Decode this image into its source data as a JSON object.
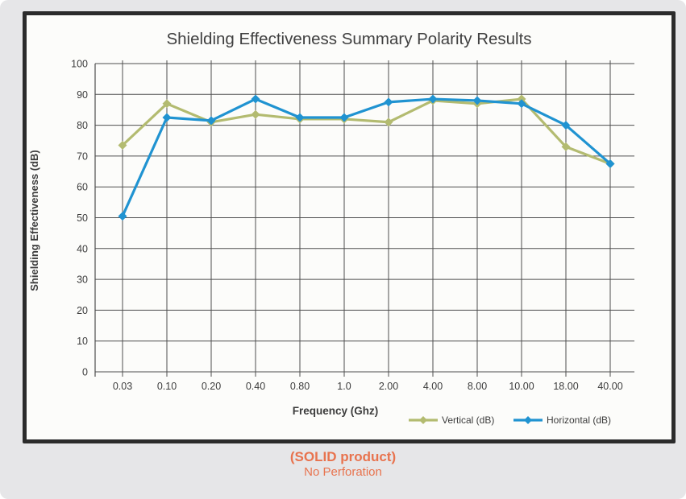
{
  "chart_data": {
    "type": "line",
    "title": "Shielding Effectiveness Summary Polarity Results",
    "xlabel": "Frequency (Ghz)",
    "ylabel": "Shielding Effectiveness (dB)",
    "ylim": [
      0,
      100
    ],
    "ytick_step": 10,
    "grid": true,
    "legend_position": "bottom-right",
    "categories": [
      "0.03",
      "0.10",
      "0.20",
      "0.40",
      "0.80",
      "1.0",
      "2.00",
      "4.00",
      "8.00",
      "10.00",
      "18.00",
      "40.00"
    ],
    "yticks": [
      "0",
      "10",
      "20",
      "30",
      "40",
      "50",
      "60",
      "70",
      "80",
      "90",
      "100"
    ],
    "series": [
      {
        "name": "Vertical (dB)",
        "color": "#b3bb70",
        "marker": "diamond",
        "values": [
          73.5,
          87,
          81,
          83.5,
          82,
          82,
          81,
          88,
          87,
          88.5,
          73,
          67.5
        ]
      },
      {
        "name": "Horizontal (dB)",
        "color": "#2093d1",
        "marker": "diamond",
        "values": [
          50.5,
          82.5,
          81.5,
          88.5,
          82.5,
          82.5,
          87.5,
          88.5,
          88,
          87,
          80,
          67.5
        ]
      }
    ]
  },
  "footer": {
    "line1": "(SOLID product)",
    "line2": "No Perforation",
    "color": "#e8734e"
  },
  "style_colors": {
    "grid": "#4e4e4e",
    "tick_text": "#3c3c3c",
    "title_text": "#404040",
    "frame_border": "#2b2b2b"
  }
}
